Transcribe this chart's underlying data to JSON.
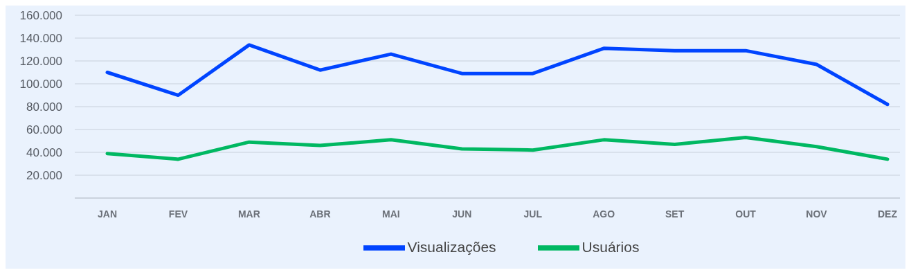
{
  "chart_data": {
    "type": "line",
    "categories": [
      "JAN",
      "FEV",
      "MAR",
      "ABR",
      "MAI",
      "JUN",
      "JUL",
      "AGO",
      "SET",
      "OUT",
      "NOV",
      "DEZ"
    ],
    "series": [
      {
        "name": "Visualizações",
        "color": "#0044ff",
        "values": [
          110000,
          90000,
          134000,
          112000,
          126000,
          109000,
          109000,
          131000,
          129000,
          129000,
          117000,
          82000
        ]
      },
      {
        "name": "Usuários",
        "color": "#00b862",
        "values": [
          39000,
          34000,
          49000,
          46000,
          51000,
          43000,
          42000,
          51000,
          47000,
          53000,
          45000,
          34000
        ]
      }
    ],
    "ylim": [
      0,
      160000
    ],
    "yticks": [
      {
        "value": 0,
        "label": null
      },
      {
        "value": 20000,
        "label": "20.000"
      },
      {
        "value": 40000,
        "label": "40.000"
      },
      {
        "value": 60000,
        "label": "60.000"
      },
      {
        "value": 80000,
        "label": "80.000"
      },
      {
        "value": 100000,
        "label": "100.000"
      },
      {
        "value": 120000,
        "label": "120.000"
      },
      {
        "value": 140000,
        "label": "140.000"
      },
      {
        "value": 160000,
        "label": "160.000"
      }
    ],
    "grid": "y",
    "legend": "bottom",
    "marker": "none",
    "line_style": "solid"
  }
}
